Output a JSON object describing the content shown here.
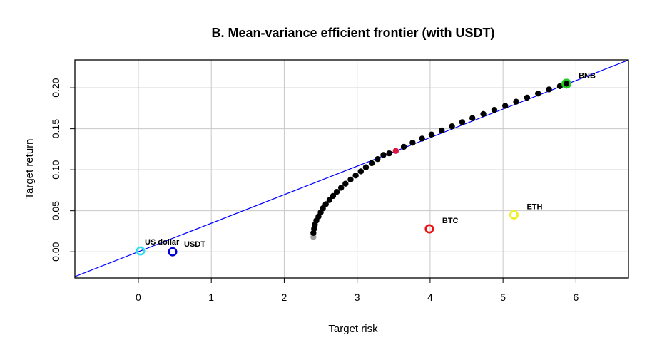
{
  "chart_data": {
    "type": "scatter",
    "title": "B. Mean-variance efficient frontier (with USDT)",
    "xlabel": "Target risk",
    "ylabel": "Target return",
    "xlim": [
      -0.87,
      6.72
    ],
    "ylim": [
      -0.032,
      0.234
    ],
    "x_ticks": [
      0,
      1,
      2,
      3,
      4,
      5,
      6
    ],
    "y_ticks": [
      0.0,
      0.05,
      0.1,
      0.15,
      0.2
    ],
    "x_tick_labels": [
      "0",
      "1",
      "2",
      "3",
      "4",
      "5",
      "6"
    ],
    "y_tick_labels": [
      "0.00",
      "0.05",
      "0.10",
      "0.15",
      "0.20"
    ],
    "grid": true,
    "tangency_line": {
      "color": "#0000ff",
      "intercept": 0.0,
      "slope": 0.0348
    },
    "frontier": {
      "color": "#000000",
      "min_variance_point": {
        "x": 2.4,
        "y": 0.018,
        "color": "#a0a0a0"
      },
      "tangency_point": {
        "x": 3.53,
        "y": 0.123,
        "color": "#e0143c"
      },
      "points": [
        {
          "x": 2.4,
          "y": 0.023
        },
        {
          "x": 2.41,
          "y": 0.028
        },
        {
          "x": 2.42,
          "y": 0.033
        },
        {
          "x": 2.44,
          "y": 0.038
        },
        {
          "x": 2.47,
          "y": 0.043
        },
        {
          "x": 2.5,
          "y": 0.048
        },
        {
          "x": 2.53,
          "y": 0.053
        },
        {
          "x": 2.57,
          "y": 0.058
        },
        {
          "x": 2.62,
          "y": 0.063
        },
        {
          "x": 2.67,
          "y": 0.068
        },
        {
          "x": 2.72,
          "y": 0.073
        },
        {
          "x": 2.78,
          "y": 0.078
        },
        {
          "x": 2.84,
          "y": 0.083
        },
        {
          "x": 2.91,
          "y": 0.088
        },
        {
          "x": 2.98,
          "y": 0.093
        },
        {
          "x": 3.05,
          "y": 0.098
        },
        {
          "x": 3.12,
          "y": 0.103
        },
        {
          "x": 3.2,
          "y": 0.108
        },
        {
          "x": 3.28,
          "y": 0.113
        },
        {
          "x": 3.36,
          "y": 0.118
        },
        {
          "x": 3.44,
          "y": 0.12
        },
        {
          "x": 3.64,
          "y": 0.128
        },
        {
          "x": 3.76,
          "y": 0.133
        },
        {
          "x": 3.89,
          "y": 0.138
        },
        {
          "x": 4.02,
          "y": 0.143
        },
        {
          "x": 4.16,
          "y": 0.148
        },
        {
          "x": 4.3,
          "y": 0.153
        },
        {
          "x": 4.44,
          "y": 0.158
        },
        {
          "x": 4.58,
          "y": 0.163
        },
        {
          "x": 4.73,
          "y": 0.168
        },
        {
          "x": 4.88,
          "y": 0.173
        },
        {
          "x": 5.03,
          "y": 0.178
        },
        {
          "x": 5.18,
          "y": 0.183
        },
        {
          "x": 5.33,
          "y": 0.188
        },
        {
          "x": 5.48,
          "y": 0.193
        },
        {
          "x": 5.63,
          "y": 0.198
        },
        {
          "x": 5.78,
          "y": 0.202
        }
      ]
    },
    "assets": [
      {
        "name": "US dollar",
        "x": 0.03,
        "y": 0.001,
        "color": "#33ddee"
      },
      {
        "name": "USDT",
        "x": 0.47,
        "y": 0.0,
        "color": "#0000dd"
      },
      {
        "name": "BTC",
        "x": 3.99,
        "y": 0.028,
        "color": "#ee1111"
      },
      {
        "name": "ETH",
        "x": 5.15,
        "y": 0.045,
        "color": "#eeee22"
      },
      {
        "name": "BNB",
        "x": 5.87,
        "y": 0.205,
        "color": "#22cc22"
      }
    ]
  }
}
